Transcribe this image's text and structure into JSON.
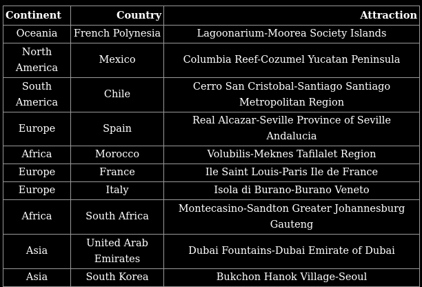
{
  "table": {
    "headers": [
      "Continent",
      "Country",
      "Attraction"
    ],
    "rows": [
      [
        "Oceania",
        "French Polynesia",
        "Lagoonarium-Moorea Society Islands"
      ],
      [
        "North America",
        "Mexico",
        "Columbia Reef-Cozumel Yucatan Peninsula"
      ],
      [
        "South America",
        "Chile",
        "Cerro San Cristobal-Santiago Santiago Metropolitan Region"
      ],
      [
        "Europe",
        "Spain",
        "Real Alcazar-Seville Province of Seville Andalucia"
      ],
      [
        "Africa",
        "Morocco",
        "Volubilis-Meknes Tafilalet Region"
      ],
      [
        "Europe",
        "France",
        "Ile Saint Louis-Paris Ile de France"
      ],
      [
        "Europe",
        "Italy",
        "Isola di Burano-Burano Veneto"
      ],
      [
        "Africa",
        "South Africa",
        "Montecasino-Sandton Greater Johannesburg Gauteng"
      ],
      [
        "Asia",
        "United Arab Emirates",
        "Dubai Fountains-Dubai Emirate of Dubai"
      ],
      [
        "Asia",
        "South Korea",
        "Bukchon Hanok Village-Seoul"
      ]
    ]
  }
}
